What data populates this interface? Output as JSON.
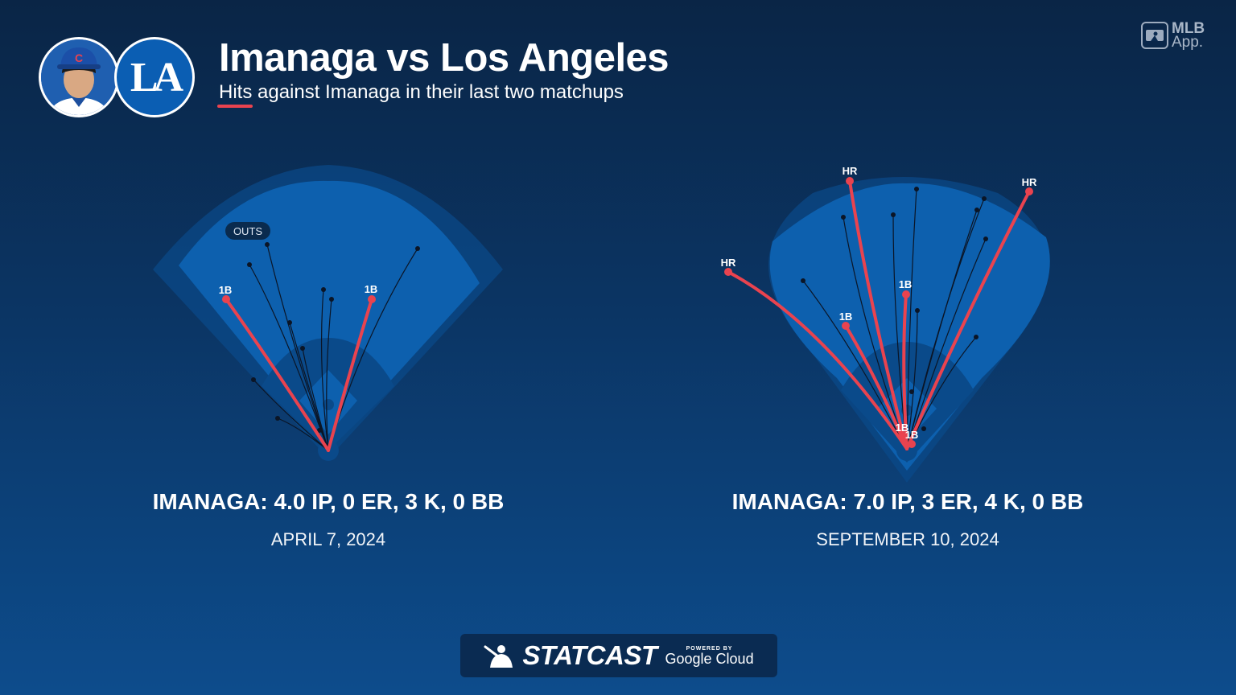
{
  "header": {
    "title": "Imanaga vs Los Angeles",
    "subtitle": "Hits against Imanaga in their last two matchups"
  },
  "app_logo": {
    "line1": "MLB",
    "line2": "App."
  },
  "team_logo_text": "LA",
  "player_cap_letter": "C",
  "colors": {
    "hit": "#e9434f",
    "out": "#0b1526",
    "field_light": "#0d5fae",
    "field_dark": "#0a4a8a"
  },
  "games": [
    {
      "stat_line": "IMANAGA: 4.0 IP, 0 ER, 3 K, 0 BB",
      "date": "APRIL 7, 2024",
      "outs_label": "OUTS",
      "hits": [
        {
          "label": "1B"
        },
        {
          "label": "1B"
        }
      ]
    },
    {
      "stat_line": "IMANAGA: 7.0 IP, 3 ER, 4 K, 0 BB",
      "date": "SEPTEMBER 10, 2024",
      "hits": [
        {
          "label": "HR"
        },
        {
          "label": "HR"
        },
        {
          "label": "HR"
        },
        {
          "label": "1B"
        },
        {
          "label": "1B"
        },
        {
          "label": "1B"
        },
        {
          "label": "1B"
        }
      ]
    }
  ],
  "footer": {
    "brand": "STATCAST",
    "powered_by": "POWERED BY",
    "partner": "Google Cloud"
  }
}
